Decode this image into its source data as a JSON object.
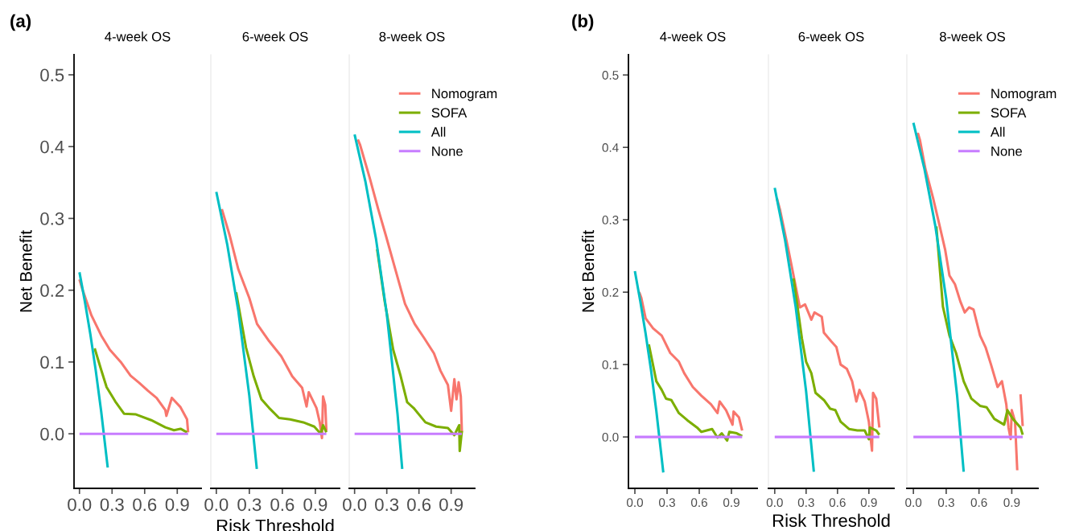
{
  "chart_data": [
    {
      "type": "line",
      "title": "4-week OS",
      "ylabel": "Net Benefit",
      "annotations": [
        "(a)"
      ],
      "legend": false,
      "tick_labels": "xy",
      "xlim": [
        -0.05,
        1.12
      ],
      "ylim": [
        -0.076,
        0.528
      ],
      "xticks": [
        {
          "value": 0,
          "label": "0.0"
        },
        {
          "value": 0.3,
          "label": "0.3"
        },
        {
          "value": 0.6,
          "label": "0.6"
        },
        {
          "value": 0.9,
          "label": "0.9"
        }
      ],
      "yticks": [
        {
          "value": 0,
          "label": "0.0"
        },
        {
          "value": 0.1,
          "label": "0.1"
        },
        {
          "value": 0.2,
          "label": "0.2"
        },
        {
          "value": 0.3,
          "label": "0.3"
        },
        {
          "value": 0.4,
          "label": "0.4"
        },
        {
          "value": 0.5,
          "label": "0.5"
        }
      ],
      "series": [
        {
          "color": "#F8766D",
          "x": [
            0,
            0.03,
            0.11,
            0.2,
            0.28,
            0.38,
            0.47,
            0.55,
            0.63,
            0.71,
            0.79,
            0.8,
            0.85,
            0.93,
            0.99,
            1.0
          ],
          "values": [
            0.215,
            0.2,
            0.165,
            0.137,
            0.117,
            0.1,
            0.081,
            0.071,
            0.06,
            0.05,
            0.033,
            0.025,
            0.05,
            0.037,
            0.02,
            0.002
          ]
        },
        {
          "color": "#7CAE00",
          "x": [
            0.14,
            0.2,
            0.25,
            0.33,
            0.41,
            0.52,
            0.66,
            0.79,
            0.87,
            0.93,
            0.99
          ],
          "values": [
            0.119,
            0.089,
            0.065,
            0.045,
            0.028,
            0.027,
            0.019,
            0.009,
            0.005,
            0.007,
            0.002
          ]
        },
        {
          "color": "#00BFC4",
          "x": [
            0,
            0.05,
            0.1,
            0.15,
            0.2,
            0.26
          ],
          "values": [
            0.225,
            0.184,
            0.139,
            0.088,
            0.031,
            -0.047
          ]
        },
        {
          "color": "#C77CFF",
          "x": [
            0,
            1
          ],
          "values": [
            0,
            0
          ]
        }
      ]
    },
    {
      "type": "line",
      "title": "6-week OS",
      "xlabel": "Risk Threshold",
      "legend": false,
      "tick_labels": "x",
      "xlim": [
        -0.05,
        1.12
      ],
      "ylim": [
        -0.076,
        0.528
      ],
      "xticks": [
        {
          "value": 0,
          "label": "0.0"
        },
        {
          "value": 0.3,
          "label": "0.3"
        },
        {
          "value": 0.6,
          "label": "0.6"
        },
        {
          "value": 0.9,
          "label": "0.9"
        }
      ],
      "series": [
        {
          "color": "#F8766D",
          "x": [
            0.05,
            0.12,
            0.2,
            0.3,
            0.37,
            0.48,
            0.59,
            0.69,
            0.78,
            0.82,
            0.84,
            0.91,
            0.94,
            0.96,
            0.97,
            0.99,
            1.0
          ],
          "values": [
            0.313,
            0.277,
            0.229,
            0.189,
            0.153,
            0.129,
            0.108,
            0.08,
            0.064,
            0.038,
            0.058,
            0.036,
            0.016,
            -0.006,
            0.052,
            0.04,
            0.004
          ]
        },
        {
          "color": "#7CAE00",
          "x": [
            0.18,
            0.27,
            0.34,
            0.41,
            0.48,
            0.57,
            0.67,
            0.79,
            0.89,
            0.95,
            0.97,
            1.0
          ],
          "values": [
            0.197,
            0.12,
            0.08,
            0.048,
            0.036,
            0.022,
            0.02,
            0.016,
            0.01,
            0,
            0.012,
            0.002
          ]
        },
        {
          "color": "#00BFC4",
          "x": [
            0,
            0.1,
            0.2,
            0.3,
            0.368
          ],
          "values": [
            0.337,
            0.263,
            0.171,
            0.053,
            -0.049
          ]
        },
        {
          "color": "#C77CFF",
          "x": [
            0,
            1
          ],
          "values": [
            0,
            0
          ]
        }
      ]
    },
    {
      "type": "line",
      "title": "8-week OS",
      "legend": "top right",
      "tick_labels": "x",
      "xlim": [
        -0.05,
        1.12
      ],
      "ylim": [
        -0.076,
        0.528
      ],
      "xticks": [
        {
          "value": 0,
          "label": "0.0"
        },
        {
          "value": 0.3,
          "label": "0.3"
        },
        {
          "value": 0.6,
          "label": "0.6"
        },
        {
          "value": 0.9,
          "label": "0.9"
        }
      ],
      "series": [
        {
          "name": "Nomogram",
          "color": "#F8766D",
          "x": [
            0.03,
            0.05,
            0.14,
            0.22,
            0.29,
            0.38,
            0.47,
            0.56,
            0.65,
            0.74,
            0.8,
            0.87,
            0.9,
            0.93,
            0.95,
            0.97,
            0.99,
            1.0
          ],
          "values": [
            0.41,
            0.403,
            0.357,
            0.313,
            0.277,
            0.229,
            0.181,
            0.153,
            0.133,
            0.112,
            0.088,
            0.068,
            0.032,
            0.076,
            0.048,
            0.072,
            0.052,
            0.002
          ]
        },
        {
          "name": "SOFA",
          "color": "#7CAE00",
          "x": [
            0.21,
            0.28,
            0.36,
            0.43,
            0.49,
            0.55,
            0.66,
            0.76,
            0.87,
            0.93,
            0.975,
            0.98,
            1.0
          ],
          "values": [
            0.257,
            0.185,
            0.117,
            0.08,
            0.044,
            0.036,
            0.016,
            0.01,
            0.008,
            -0.002,
            0.012,
            -0.024,
            0.004
          ]
        },
        {
          "name": "All",
          "color": "#00BFC4",
          "x": [
            0,
            0.1,
            0.2,
            0.3,
            0.4,
            0.444
          ],
          "values": [
            0.417,
            0.352,
            0.271,
            0.167,
            0.028,
            -0.049
          ]
        },
        {
          "name": "None",
          "color": "#C77CFF",
          "x": [
            0,
            1
          ],
          "values": [
            0,
            0
          ]
        }
      ]
    },
    {
      "type": "line",
      "title": "4-week OS",
      "ylabel": "Net Benefit",
      "annotations": [
        "(b)"
      ],
      "legend": false,
      "tick_labels": "xy",
      "xlim": [
        -0.06,
        1.14
      ],
      "ylim": [
        -0.071,
        0.528
      ],
      "xticks": [
        {
          "value": 0,
          "label": "0.0"
        },
        {
          "value": 0.3,
          "label": "0.3"
        },
        {
          "value": 0.6,
          "label": "0.6"
        },
        {
          "value": 0.9,
          "label": "0.9"
        }
      ],
      "yticks": [
        {
          "value": 0,
          "label": "0.0"
        },
        {
          "value": 0.1,
          "label": "0.1"
        },
        {
          "value": 0.2,
          "label": "0.2"
        },
        {
          "value": 0.3,
          "label": "0.3"
        },
        {
          "value": 0.4,
          "label": "0.4"
        },
        {
          "value": 0.5,
          "label": "0.5"
        }
      ],
      "series": [
        {
          "color": "#F8766D",
          "x": [
            0.04,
            0.06,
            0.1,
            0.17,
            0.25,
            0.33,
            0.41,
            0.46,
            0.54,
            0.62,
            0.71,
            0.77,
            0.79,
            0.85,
            0.91,
            0.92,
            0.97,
            1.0
          ],
          "values": [
            0.2,
            0.192,
            0.164,
            0.15,
            0.14,
            0.116,
            0.104,
            0.088,
            0.069,
            0.057,
            0.045,
            0.033,
            0.049,
            0.037,
            0.017,
            0.035,
            0.027,
            0.009
          ]
        },
        {
          "color": "#7CAE00",
          "x": [
            0.13,
            0.2,
            0.25,
            0.29,
            0.34,
            0.41,
            0.49,
            0.58,
            0.62,
            0.72,
            0.77,
            0.81,
            0.86,
            0.88,
            0.95,
            1.0
          ],
          "values": [
            0.128,
            0.077,
            0.065,
            0.053,
            0.051,
            0.033,
            0.023,
            0.013,
            0.007,
            0.011,
            -0.001,
            0.005,
            -0.005,
            0.007,
            0.005,
            0.001
          ]
        },
        {
          "color": "#00BFC4",
          "x": [
            0,
            0.05,
            0.1,
            0.15,
            0.2,
            0.265
          ],
          "values": [
            0.229,
            0.188,
            0.143,
            0.093,
            0.036,
            -0.049
          ]
        },
        {
          "color": "#C77CFF",
          "x": [
            0,
            1
          ],
          "values": [
            0,
            0
          ]
        }
      ]
    },
    {
      "type": "line",
      "title": "6-week OS",
      "xlabel": "Risk Threshold",
      "legend": false,
      "tick_labels": "x",
      "xlim": [
        -0.06,
        1.14
      ],
      "ylim": [
        -0.071,
        0.528
      ],
      "xticks": [
        {
          "value": 0,
          "label": "0.0"
        },
        {
          "value": 0.3,
          "label": "0.3"
        },
        {
          "value": 0.6,
          "label": "0.6"
        },
        {
          "value": 0.9,
          "label": "0.9"
        }
      ],
      "series": [
        {
          "color": "#F8766D",
          "x": [
            0.02,
            0.05,
            0.13,
            0.18,
            0.24,
            0.29,
            0.35,
            0.38,
            0.45,
            0.47,
            0.54,
            0.59,
            0.63,
            0.69,
            0.74,
            0.78,
            0.81,
            0.86,
            0.9,
            0.93,
            0.94,
            0.97,
            1.0
          ],
          "values": [
            0.33,
            0.314,
            0.259,
            0.223,
            0.179,
            0.183,
            0.162,
            0.172,
            0.166,
            0.144,
            0.132,
            0.124,
            0.1,
            0.094,
            0.077,
            0.049,
            0.065,
            0.049,
            0.021,
            -0.019,
            0.061,
            0.053,
            0.013
          ]
        },
        {
          "color": "#7CAE00",
          "x": [
            0.18,
            0.26,
            0.3,
            0.35,
            0.39,
            0.47,
            0.53,
            0.58,
            0.63,
            0.71,
            0.79,
            0.86,
            0.9,
            0.91,
            0.97,
            1.0
          ],
          "values": [
            0.219,
            0.136,
            0.104,
            0.088,
            0.061,
            0.051,
            0.039,
            0.037,
            0.021,
            0.011,
            0.009,
            0.009,
            -0.003,
            0.013,
            0.009,
            0.003
          ]
        },
        {
          "color": "#00BFC4",
          "x": [
            0,
            0.1,
            0.2,
            0.3,
            0.374
          ],
          "values": [
            0.344,
            0.271,
            0.18,
            0.063,
            -0.048
          ]
        },
        {
          "color": "#C77CFF",
          "x": [
            0,
            1
          ],
          "values": [
            0,
            0
          ]
        }
      ]
    },
    {
      "type": "line",
      "title": "8-week OS",
      "legend": "top right",
      "tick_labels": "x",
      "xlim": [
        -0.06,
        1.14
      ],
      "ylim": [
        -0.071,
        0.528
      ],
      "xticks": [
        {
          "value": 0,
          "label": "0.0"
        },
        {
          "value": 0.3,
          "label": "0.3"
        },
        {
          "value": 0.6,
          "label": "0.6"
        },
        {
          "value": 0.9,
          "label": "0.9"
        }
      ],
      "series": [
        {
          "name": "Nomogram",
          "color": "#F8766D",
          "x": [
            0.04,
            0.06,
            0.11,
            0.18,
            0.23,
            0.29,
            0.33,
            0.38,
            0.43,
            0.47,
            0.51,
            0.55,
            0.61,
            0.66,
            0.71,
            0.77,
            0.81,
            0.85,
            0.87,
            0.89,
            0.9,
            0.93,
            0.95,
            0.96,
            0.98,
            1.0
          ],
          "values": [
            0.42,
            0.41,
            0.37,
            0.33,
            0.298,
            0.259,
            0.223,
            0.211,
            0.187,
            0.172,
            0.179,
            0.176,
            0.14,
            0.124,
            0.1,
            0.069,
            0.077,
            0.045,
            0.013,
            -0.003,
            0.037,
            0.021,
            -0.046,
            null,
            0.059,
            0.015
          ]
        },
        {
          "name": "SOFA",
          "color": "#7CAE00",
          "x": [
            0.21,
            0.27,
            0.33,
            0.39,
            0.46,
            0.53,
            0.61,
            0.67,
            0.74,
            0.83,
            0.86,
            0.91,
            0.98,
            1.0
          ],
          "values": [
            0.291,
            0.18,
            0.14,
            0.116,
            0.077,
            0.053,
            0.043,
            0.041,
            0.025,
            0.017,
            0.037,
            0.025,
            0.013,
            0.003
          ]
        },
        {
          "name": "All",
          "color": "#00BFC4",
          "x": [
            0,
            0.1,
            0.2,
            0.3,
            0.4,
            0.46
          ],
          "values": [
            0.434,
            0.371,
            0.292,
            0.191,
            0.057,
            -0.048
          ]
        },
        {
          "name": "None",
          "color": "#C77CFF",
          "x": [
            0,
            1
          ],
          "values": [
            0,
            0
          ]
        }
      ]
    }
  ]
}
